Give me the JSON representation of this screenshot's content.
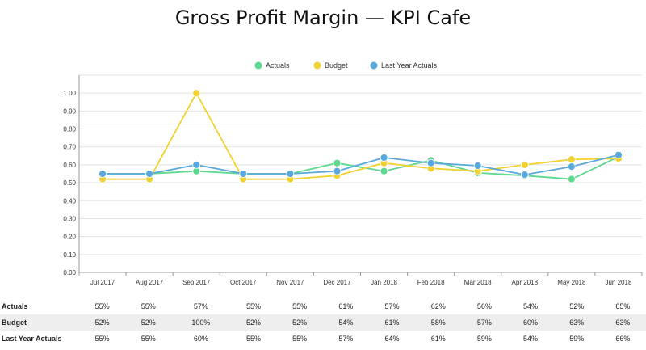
{
  "chart_data": {
    "type": "line",
    "title": "Gross Profit Margin — KPI Cafe",
    "xlabel": "",
    "ylabel": "",
    "ylim": [
      0,
      1.1
    ],
    "yticks": [
      "0.00",
      "0.10",
      "0.20",
      "0.30",
      "0.40",
      "0.50",
      "0.60",
      "0.70",
      "0.80",
      "0.90",
      "1.00"
    ],
    "grid": true,
    "legend_position": "top-center",
    "categories": [
      "Jul 2017",
      "Aug 2017",
      "Sep 2017",
      "Oct 2017",
      "Nov 2017",
      "Dec 2017",
      "Jan 2018",
      "Feb 2018",
      "Mar 2018",
      "Apr 2018",
      "May 2018",
      "Jun 2018"
    ],
    "series": [
      {
        "name": "Actuals",
        "color": "#5fd88f",
        "values": [
          0.55,
          0.55,
          0.565,
          0.55,
          0.55,
          0.61,
          0.565,
          0.625,
          0.555,
          0.54,
          0.52,
          0.645
        ],
        "labels": [
          "55%",
          "55%",
          "57%",
          "55%",
          "55%",
          "61%",
          "57%",
          "62%",
          "56%",
          "54%",
          "52%",
          "65%"
        ]
      },
      {
        "name": "Budget",
        "color": "#f2d230",
        "values": [
          0.52,
          0.52,
          1.0,
          0.52,
          0.52,
          0.54,
          0.61,
          0.58,
          0.565,
          0.6,
          0.63,
          0.635
        ],
        "labels": [
          "52%",
          "52%",
          "100%",
          "52%",
          "52%",
          "54%",
          "61%",
          "58%",
          "57%",
          "60%",
          "63%",
          "63%"
        ]
      },
      {
        "name": "Last Year Actuals",
        "color": "#5aa9dc",
        "values": [
          0.55,
          0.55,
          0.6,
          0.55,
          0.55,
          0.565,
          0.64,
          0.61,
          0.595,
          0.545,
          0.59,
          0.655
        ],
        "labels": [
          "55%",
          "55%",
          "60%",
          "55%",
          "55%",
          "57%",
          "64%",
          "61%",
          "59%",
          "54%",
          "59%",
          "66%"
        ]
      }
    ]
  }
}
